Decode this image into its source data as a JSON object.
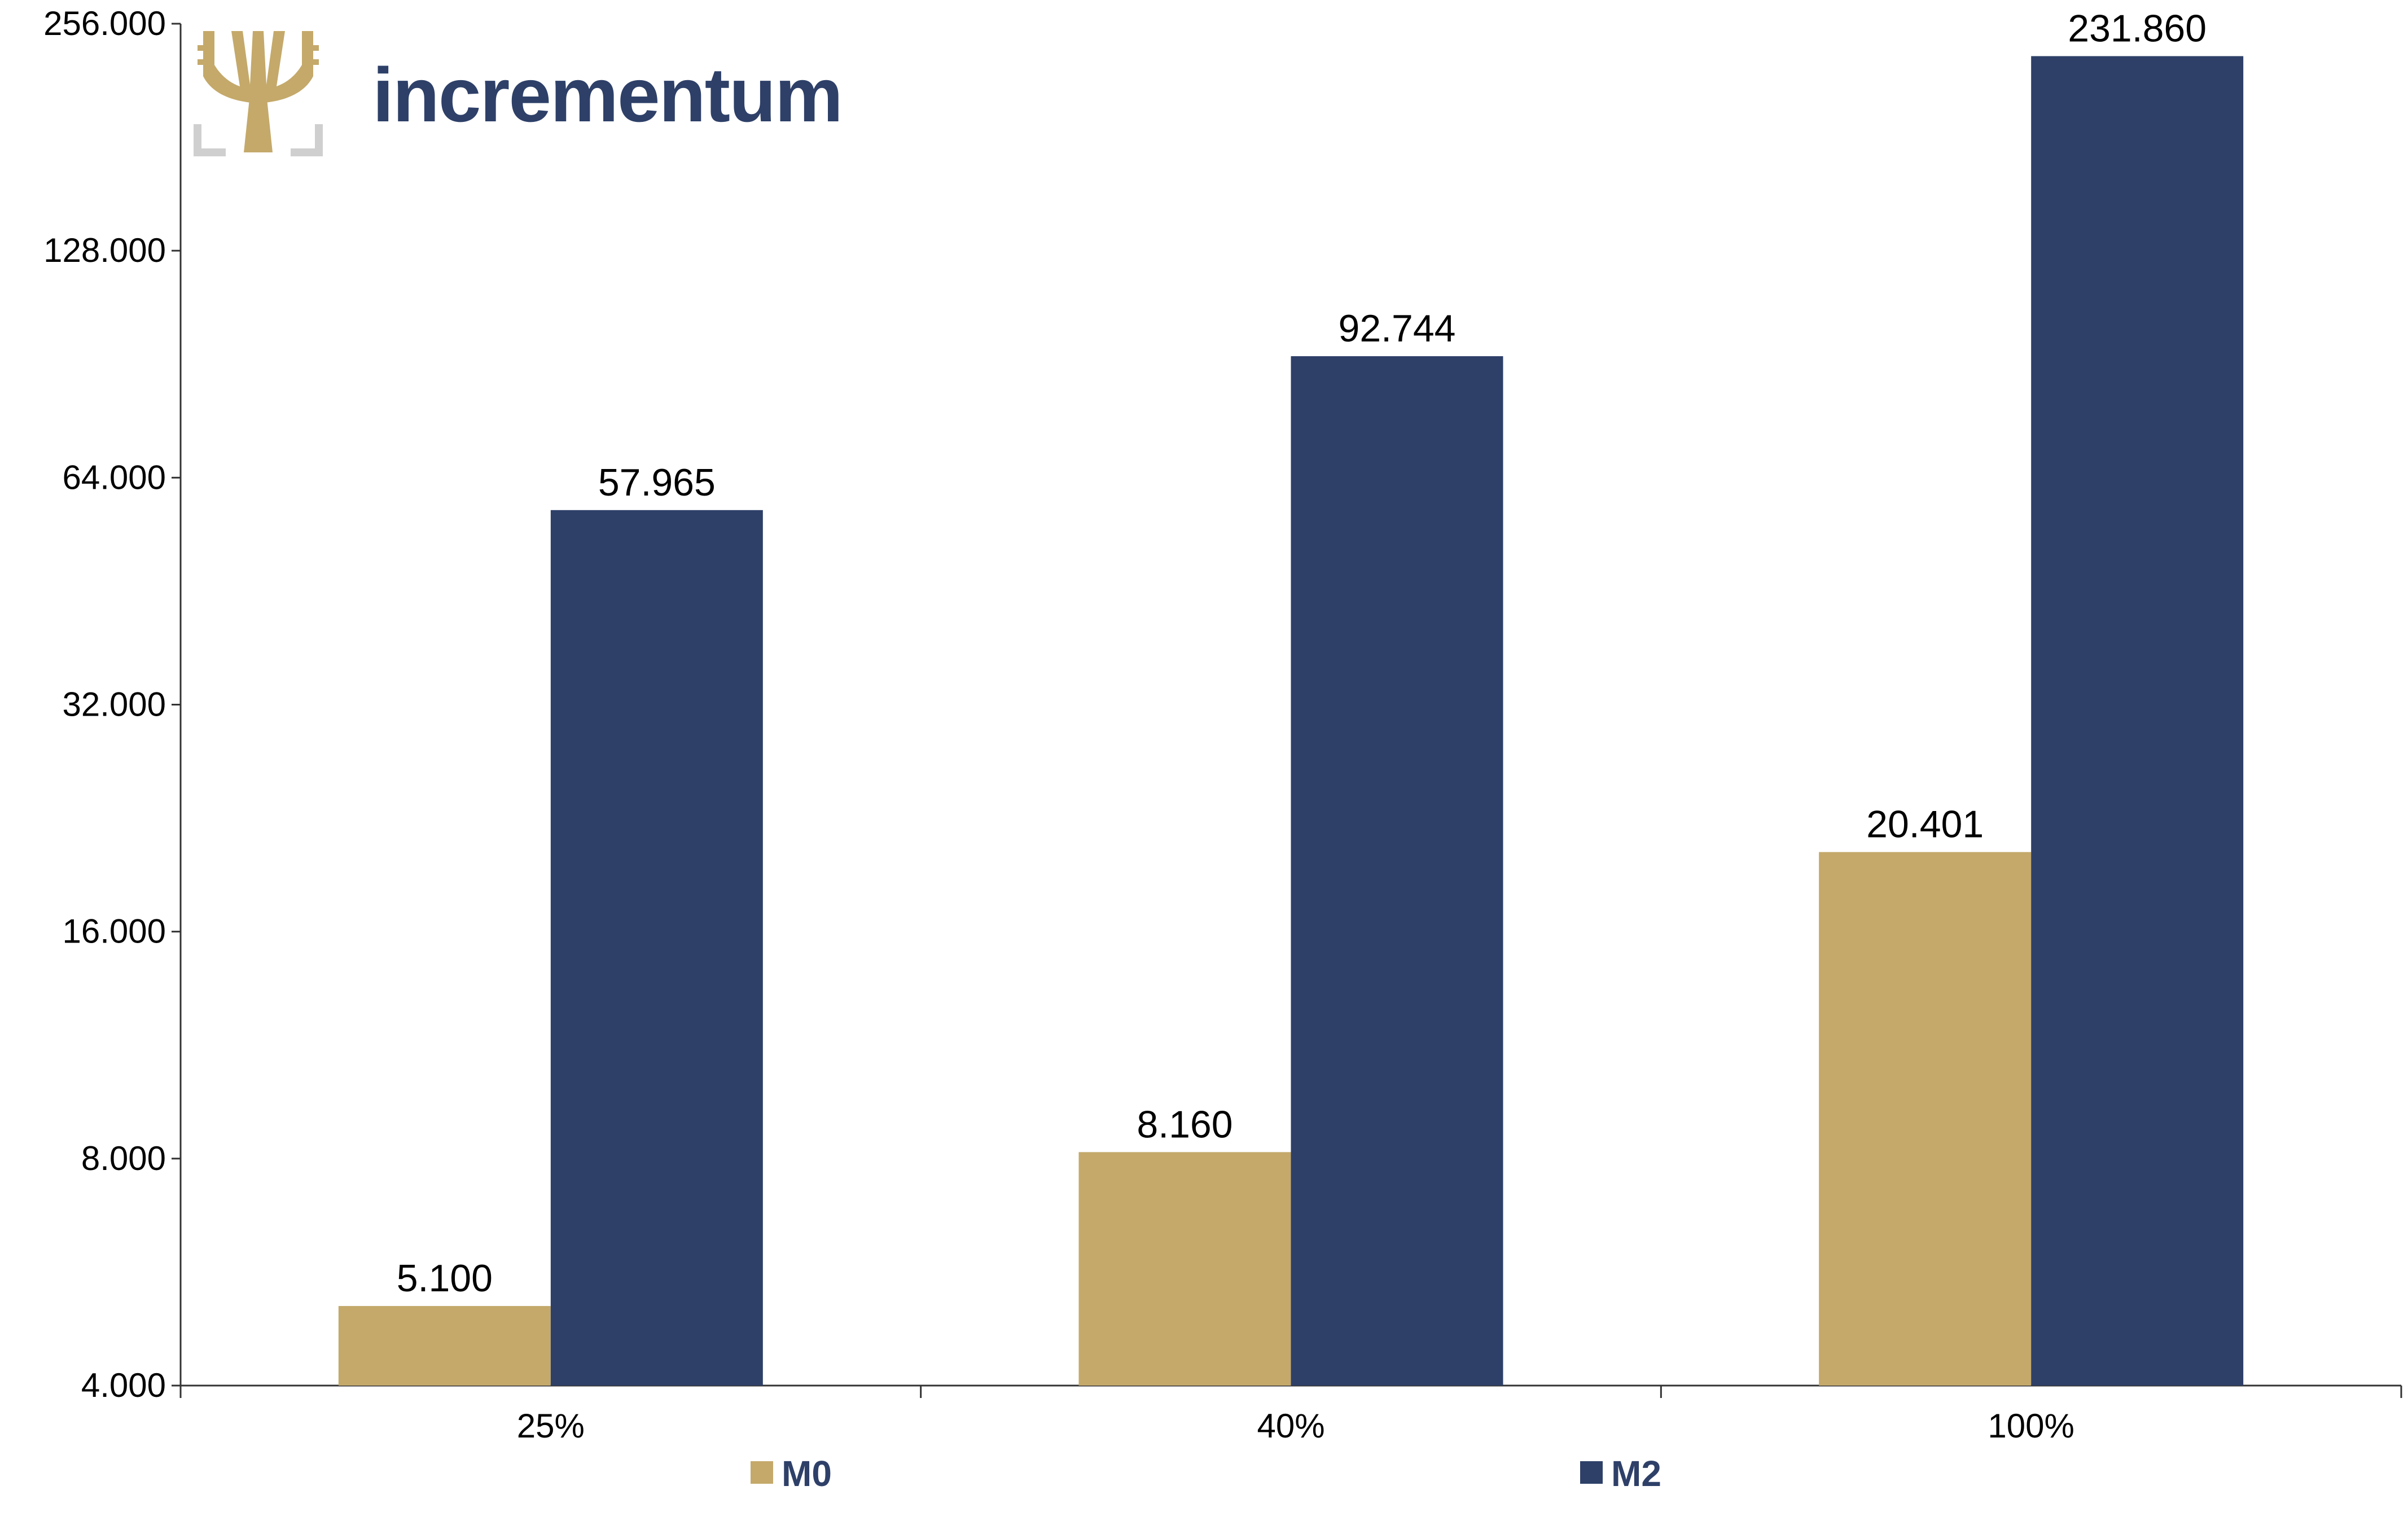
{
  "brand": {
    "name": "incrementum",
    "logo_icon": "tree-logo-icon"
  },
  "chart_data": {
    "type": "bar",
    "categories": [
      "25%",
      "40%",
      "100%"
    ],
    "series": [
      {
        "name": "M0",
        "values": [
          5.1,
          8.16,
          20.401
        ],
        "labels": [
          "5.100",
          "8.160",
          "20.401"
        ],
        "color": "#c4a96b"
      },
      {
        "name": "M2",
        "values": [
          57.965,
          92.744,
          231.86
        ],
        "labels": [
          "57.965",
          "92.744",
          "231.860"
        ],
        "color": "#2e4068"
      }
    ],
    "y_scale": "log2",
    "ylim": [
      4,
      256
    ],
    "y_ticks": [
      4,
      8,
      16,
      32,
      64,
      128,
      256
    ],
    "y_tick_labels": [
      "4.000",
      "8.000",
      "16.000",
      "32.000",
      "64.000",
      "128.000",
      "256.000"
    ],
    "grid": false,
    "legend_position": "bottom-center",
    "title": "",
    "xlabel": "",
    "ylabel": ""
  },
  "colors": {
    "gold": "#c4a96b",
    "navy": "#2e4068",
    "axis": "#333333"
  }
}
